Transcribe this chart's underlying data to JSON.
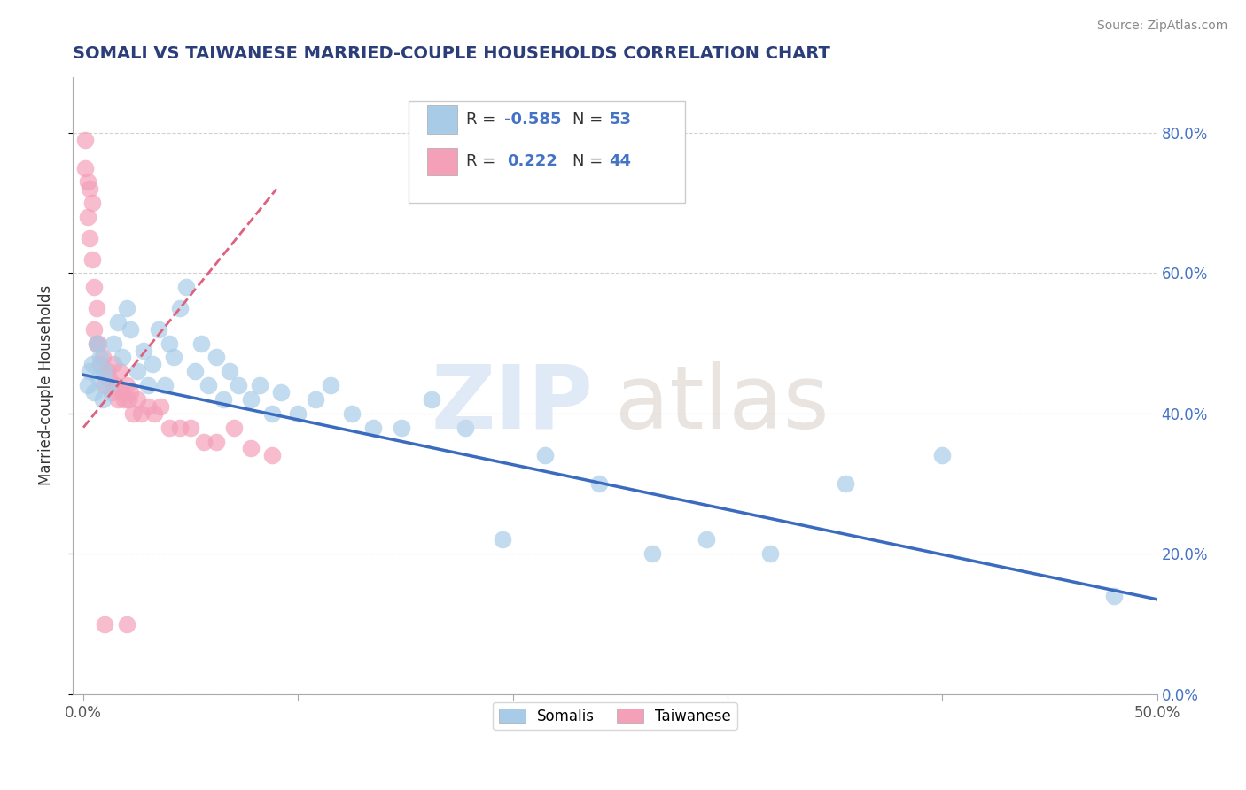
{
  "title": "SOMALI VS TAIWANESE MARRIED-COUPLE HOUSEHOLDS CORRELATION CHART",
  "source": "Source: ZipAtlas.com",
  "ylabel": "Married-couple Households",
  "xlim": [
    -0.005,
    0.5
  ],
  "ylim": [
    0.0,
    0.88
  ],
  "xticks": [
    0.0,
    0.5
  ],
  "xticklabels": [
    "0.0%",
    "50.0%"
  ],
  "yticks": [
    0.0,
    0.2,
    0.4,
    0.6,
    0.8
  ],
  "yticklabels": [
    "0.0%",
    "20.0%",
    "40.0%",
    "60.0%",
    "80.0%"
  ],
  "somali_color": "#a8cce8",
  "taiwanese_color": "#f4a0b8",
  "somali_line_color": "#3a6bbf",
  "taiwanese_line_color": "#e06080",
  "somali_R": -0.585,
  "somali_N": 53,
  "taiwanese_R": 0.222,
  "taiwanese_N": 44,
  "title_color": "#2c3e7a",
  "source_color": "#888888",
  "legend_label_somali": "Somalis",
  "legend_label_taiwanese": "Taiwanese",
  "somali_scatter_x": [
    0.002,
    0.003,
    0.004,
    0.005,
    0.006,
    0.007,
    0.008,
    0.009,
    0.01,
    0.012,
    0.014,
    0.016,
    0.018,
    0.02,
    0.022,
    0.025,
    0.028,
    0.03,
    0.032,
    0.035,
    0.038,
    0.04,
    0.042,
    0.045,
    0.048,
    0.052,
    0.055,
    0.058,
    0.062,
    0.065,
    0.068,
    0.072,
    0.078,
    0.082,
    0.088,
    0.092,
    0.1,
    0.108,
    0.115,
    0.125,
    0.135,
    0.148,
    0.162,
    0.178,
    0.195,
    0.215,
    0.24,
    0.265,
    0.29,
    0.32,
    0.355,
    0.4,
    0.48
  ],
  "somali_scatter_y": [
    0.44,
    0.46,
    0.47,
    0.43,
    0.5,
    0.45,
    0.48,
    0.42,
    0.46,
    0.44,
    0.5,
    0.53,
    0.48,
    0.55,
    0.52,
    0.46,
    0.49,
    0.44,
    0.47,
    0.52,
    0.44,
    0.5,
    0.48,
    0.55,
    0.58,
    0.46,
    0.5,
    0.44,
    0.48,
    0.42,
    0.46,
    0.44,
    0.42,
    0.44,
    0.4,
    0.43,
    0.4,
    0.42,
    0.44,
    0.4,
    0.38,
    0.38,
    0.42,
    0.38,
    0.22,
    0.34,
    0.3,
    0.2,
    0.22,
    0.2,
    0.3,
    0.34,
    0.14
  ],
  "taiwanese_scatter_x": [
    0.001,
    0.001,
    0.002,
    0.002,
    0.003,
    0.003,
    0.004,
    0.004,
    0.005,
    0.005,
    0.006,
    0.006,
    0.007,
    0.008,
    0.009,
    0.01,
    0.011,
    0.012,
    0.013,
    0.014,
    0.015,
    0.016,
    0.017,
    0.018,
    0.019,
    0.02,
    0.021,
    0.022,
    0.023,
    0.025,
    0.027,
    0.03,
    0.033,
    0.036,
    0.04,
    0.045,
    0.05,
    0.056,
    0.062,
    0.07,
    0.078,
    0.088,
    0.02,
    0.01
  ],
  "taiwanese_scatter_y": [
    0.75,
    0.79,
    0.73,
    0.68,
    0.72,
    0.65,
    0.7,
    0.62,
    0.52,
    0.58,
    0.55,
    0.5,
    0.5,
    0.47,
    0.48,
    0.44,
    0.46,
    0.45,
    0.43,
    0.47,
    0.44,
    0.42,
    0.46,
    0.43,
    0.42,
    0.44,
    0.42,
    0.43,
    0.4,
    0.42,
    0.4,
    0.41,
    0.4,
    0.41,
    0.38,
    0.38,
    0.38,
    0.36,
    0.36,
    0.38,
    0.35,
    0.34,
    0.1,
    0.1
  ],
  "somali_line_x": [
    0.0,
    0.5
  ],
  "somali_line_y": [
    0.455,
    0.135
  ],
  "taiwanese_line_x": [
    0.0,
    0.09
  ],
  "taiwanese_line_y": [
    0.38,
    0.72
  ]
}
